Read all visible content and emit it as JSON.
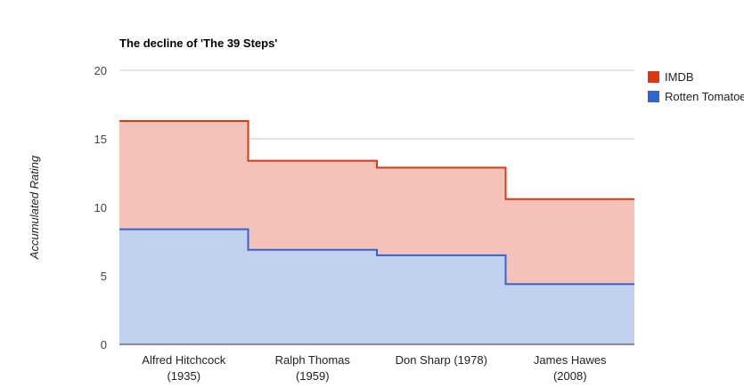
{
  "chart_data": {
    "type": "area",
    "title": "The decline of 'The 39 Steps'",
    "xlabel": "",
    "ylabel": "Accumulated Rating",
    "ylim": [
      0,
      20
    ],
    "yticks": [
      0,
      5,
      10,
      15,
      20
    ],
    "grid": true,
    "stacked": true,
    "stepped": true,
    "legend_position": "right",
    "categories": [
      [
        "Alfred Hitchcock",
        "(1935)"
      ],
      [
        "Ralph Thomas",
        "(1959)"
      ],
      [
        "Don Sharp (1978)",
        ""
      ],
      [
        "James Hawes",
        "(2008)"
      ]
    ],
    "series": [
      {
        "name": "IMDB",
        "values": [
          7.9,
          6.5,
          6.4,
          6.2
        ],
        "line_color": "#dc3912",
        "fill_color": "#f4c2b8"
      },
      {
        "name": "Rotten Tomatoes",
        "values": [
          8.4,
          6.9,
          6.5,
          4.4
        ],
        "line_color": "#3366cc",
        "fill_color": "#c1d1ef"
      }
    ]
  }
}
